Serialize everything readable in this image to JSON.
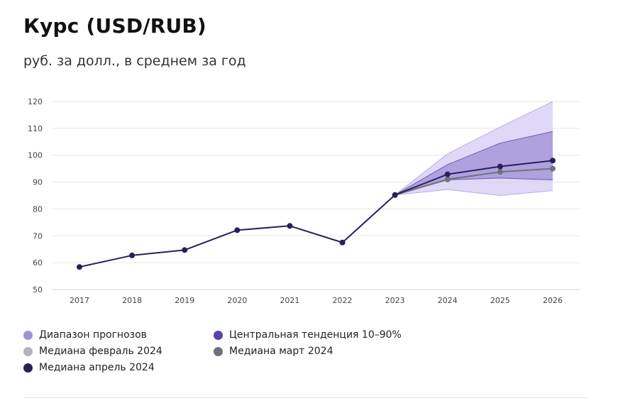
{
  "header": {
    "title": "Курс (USD/RUB)",
    "subtitle": "руб. за долл., в среднем за год"
  },
  "legend": {
    "items": [
      {
        "label": "Диапазон прогнозов",
        "color": "#9f8fdb"
      },
      {
        "label": "Центральная тенденция 10–90%",
        "color": "#5a42a6"
      },
      {
        "label": "Медиана февраль 2024",
        "color": "#b3b3b8"
      },
      {
        "label": "Медиана март 2024",
        "color": "#6c737a"
      },
      {
        "label": "Медиана апрель 2024",
        "color": "#2a1f5c"
      }
    ]
  },
  "chart_data": {
    "type": "line",
    "x": [
      "2017",
      "2018",
      "2019",
      "2020",
      "2021",
      "2022",
      "2023",
      "2024",
      "2025",
      "2026"
    ],
    "ylim": [
      50,
      120
    ],
    "yticks": [
      50,
      60,
      70,
      80,
      90,
      100,
      110,
      120
    ],
    "grid": true,
    "colors": {
      "range_band": "#d9d1f5",
      "central_band": "#9d8fd6",
      "median_april": "#2a1f5c",
      "median_march": "#6c737a",
      "median_february": "#b3b3b8",
      "axis": "#cdd8dc",
      "grid": "#e6e6e6"
    },
    "forecast_range": {
      "x": [
        "2023",
        "2024",
        "2025",
        "2026"
      ],
      "upper": [
        85.2,
        100.5,
        110.5,
        120
      ],
      "lower": [
        85.2,
        87.2,
        85.0,
        86.8
      ]
    },
    "central_tendency": {
      "x": [
        "2023",
        "2024",
        "2025",
        "2026"
      ],
      "upper": [
        85.2,
        96.5,
        104.5,
        108.8
      ],
      "lower": [
        85.2,
        90.8,
        91.5,
        90.8
      ]
    },
    "series": [
      {
        "name": "Медиана март 2024",
        "key": "median_march",
        "x": [
          "2023",
          "2024",
          "2025",
          "2026"
        ],
        "values": [
          85.2,
          91.0,
          93.8,
          95.0
        ]
      },
      {
        "name": "Медиана апрель 2024",
        "key": "median_april",
        "x": [
          "2017",
          "2018",
          "2019",
          "2020",
          "2021",
          "2022",
          "2023",
          "2024",
          "2025",
          "2026"
        ],
        "values": [
          58.4,
          62.7,
          64.7,
          72.1,
          73.7,
          67.5,
          85.2,
          92.9,
          95.8,
          98.0
        ]
      }
    ]
  }
}
